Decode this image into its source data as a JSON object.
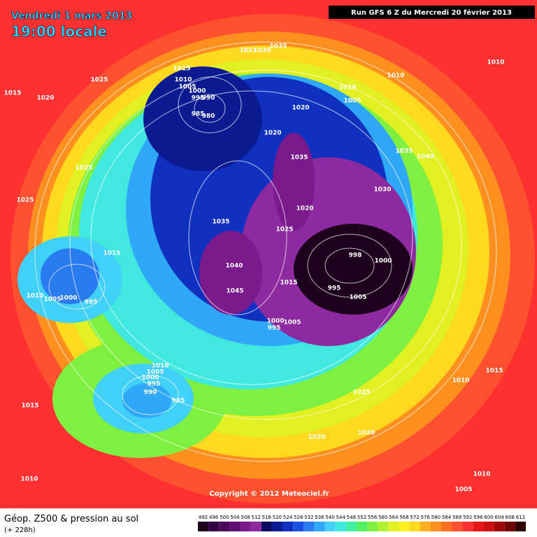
{
  "map": {
    "date": "Vendredi 1 mars 2013",
    "time": "19:00 locale",
    "run": "Run GFS 6 Z du Mercredi 20 février 2013",
    "copyright": "Copyright © 2012 Meteociel.fr",
    "pressure_labels": [
      1015,
      1020,
      1025,
      1015,
      1010,
      1005,
      1000,
      995,
      990,
      985,
      980,
      1021,
      1030,
      1035,
      1010,
      1010,
      1010,
      1005,
      1020,
      1020,
      1035,
      1035,
      1040,
      1025,
      1025,
      1030,
      1020,
      1035,
      1025,
      1015,
      1040,
      998,
      1000,
      1015,
      995,
      1005,
      1045,
      1010,
      1005,
      1000,
      995,
      1000,
      995,
      1005,
      1010,
      1005,
      1000,
      995,
      990,
      985,
      1015,
      1025,
      1010,
      1015,
      1020,
      1020,
      1010,
      1010,
      1005
    ]
  },
  "legend": {
    "title": "Géop. Z500 & pression au sol",
    "subtitle": "(+ 228h)",
    "values": [
      492,
      496,
      500,
      504,
      508,
      512,
      516,
      520,
      524,
      528,
      532,
      536,
      540,
      544,
      548,
      552,
      556,
      560,
      564,
      568,
      572,
      576,
      580,
      584,
      588,
      592,
      596,
      600,
      604,
      608,
      612
    ],
    "colors": [
      "#1c001c",
      "#300040",
      "#4a0a5a",
      "#600e74",
      "#7a1a8c",
      "#8e2aa0",
      "#0a0a60",
      "#0a1a90",
      "#1030c0",
      "#1a50e0",
      "#2a7af0",
      "#30a8f8",
      "#40d0f8",
      "#40e8e0",
      "#40f0a0",
      "#50f060",
      "#80f040",
      "#b0f030",
      "#e0f020",
      "#fff020",
      "#ffd820",
      "#ffb020",
      "#ff9020",
      "#ff7020",
      "#ff5030",
      "#ff3030",
      "#e81818",
      "#c81010",
      "#a00808",
      "#700404",
      "#300000"
    ]
  }
}
